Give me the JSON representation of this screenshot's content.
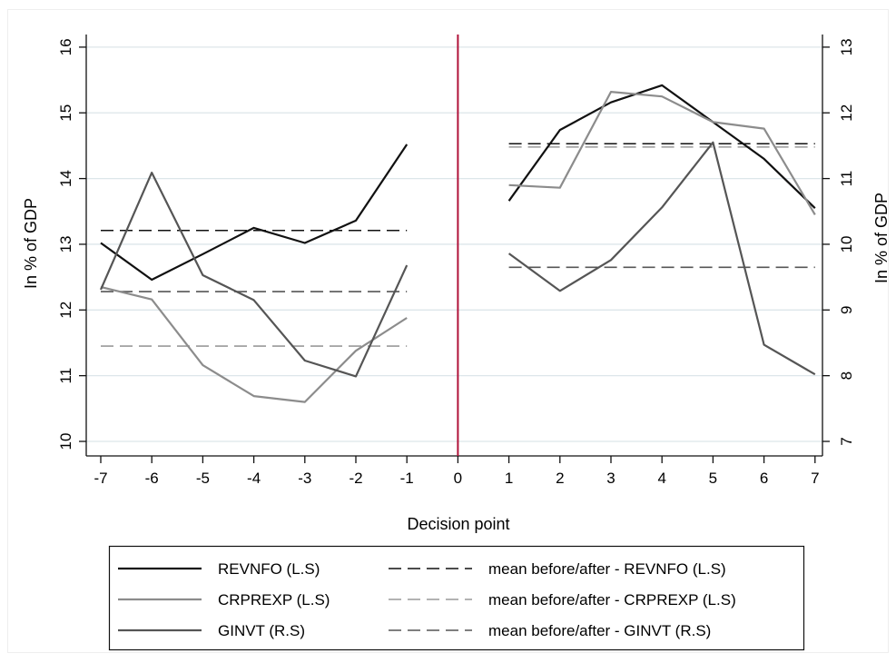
{
  "chart_data": {
    "type": "line",
    "xlabel": "Decision point",
    "ylabel_left": "In % of GDP",
    "ylabel_right": "In % of GDP",
    "xlim": [
      -7,
      7
    ],
    "x_ticks": [
      -7,
      -6,
      -5,
      -4,
      -3,
      -2,
      -1,
      0,
      1,
      2,
      3,
      4,
      5,
      6,
      7
    ],
    "x_tick_labels": [
      "-7",
      "-6",
      "-5",
      "-4",
      "-3",
      "-2",
      "-1",
      "0",
      "1",
      "2",
      "3",
      "4",
      "5",
      "6",
      "7"
    ],
    "ylim_left": [
      10,
      16
    ],
    "y_ticks_left": [
      10,
      11,
      12,
      13,
      14,
      15,
      16
    ],
    "y_tick_labels_left": [
      "10",
      "11",
      "12",
      "13",
      "14",
      "15",
      "16"
    ],
    "ylim_right": [
      7,
      13
    ],
    "y_ticks_right": [
      7,
      8,
      9,
      10,
      11,
      12,
      13
    ],
    "y_tick_labels_right": [
      "7",
      "8",
      "9",
      "10",
      "11",
      "12",
      "13"
    ],
    "grid": true,
    "decision_line_x": 0,
    "legend_position": "bottom",
    "series": [
      {
        "name": "REVNFO (L.S)",
        "axis": "left",
        "color": "#111111",
        "x": [
          -7,
          -6,
          -5,
          -4,
          -3,
          -2,
          -1,
          1,
          2,
          3,
          4,
          5,
          6,
          7
        ],
        "values": [
          13.02,
          12.46,
          12.85,
          13.25,
          13.02,
          13.36,
          14.52,
          13.66,
          14.74,
          15.16,
          15.42,
          14.86,
          14.3,
          13.55
        ]
      },
      {
        "name": "CRPREXP (L.S)",
        "axis": "left",
        "color": "#8c8c8c",
        "x": [
          -7,
          -6,
          -5,
          -4,
          -3,
          -2,
          -1,
          1,
          2,
          3,
          4,
          5,
          6,
          7
        ],
        "values": [
          12.35,
          12.16,
          11.16,
          10.69,
          10.6,
          11.38,
          11.88,
          13.9,
          13.86,
          15.32,
          15.25,
          14.86,
          14.76,
          13.45
        ]
      },
      {
        "name": "GINVT (R.S)",
        "axis": "right",
        "color": "#555555",
        "x": [
          -7,
          -6,
          -5,
          -4,
          -3,
          -2,
          -1,
          1,
          2,
          3,
          4,
          5,
          6,
          7
        ],
        "values": [
          9.31,
          11.09,
          9.53,
          9.15,
          8.23,
          7.99,
          9.68,
          9.86,
          9.29,
          9.76,
          10.56,
          11.55,
          8.47,
          8.02
        ]
      }
    ],
    "mean_lines": [
      {
        "name": "mean before/after - REVNFO (L.S)",
        "axis": "left",
        "color": "#111111",
        "before": 13.21,
        "after": 14.53
      },
      {
        "name": "mean before/after - CRPREXP (L.S)",
        "axis": "left",
        "color": "#9a9a9a",
        "before": 11.45,
        "after": 14.48
      },
      {
        "name": "mean before/after - GINVT (R.S)",
        "axis": "right",
        "color": "#555555",
        "before": 9.28,
        "after": 9.65
      }
    ],
    "decision_line_color": "#b0133a"
  }
}
